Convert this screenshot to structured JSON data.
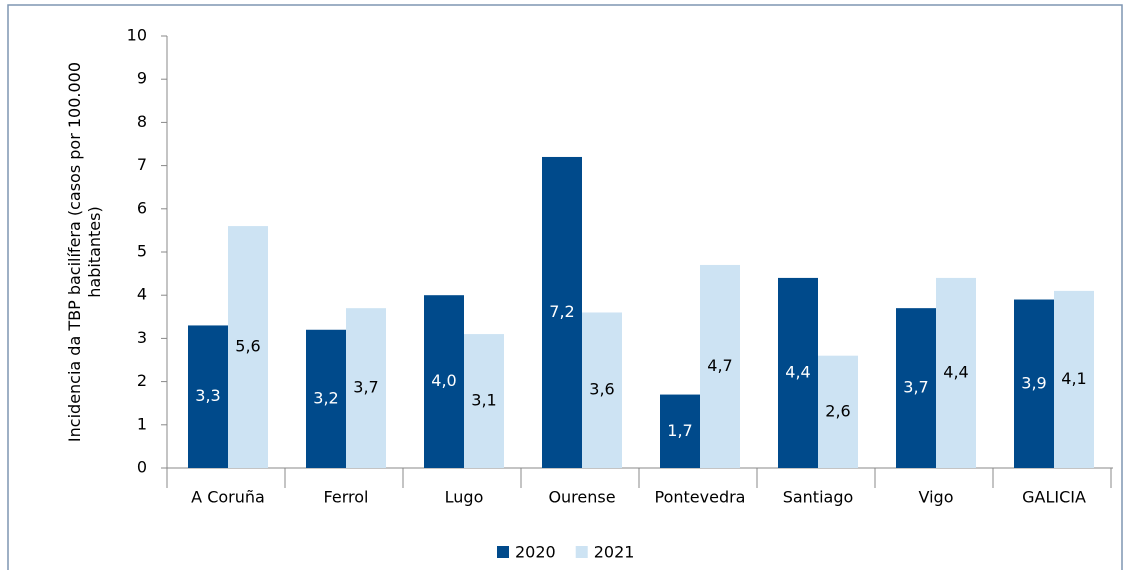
{
  "chart_data": {
    "type": "bar",
    "y_label": "Incidencia da TBP bacilífera (casos por 100.000 habitantes)",
    "categories": [
      "A Coruña",
      "Ferrol",
      "Lugo",
      "Ourense",
      "Pontevedra",
      "Santiago",
      "Vigo",
      "GALICIA"
    ],
    "series": [
      {
        "name": "2020",
        "color": "#004a8b",
        "label_color": "#ffffff",
        "values": [
          3.3,
          3.2,
          4.0,
          7.2,
          1.7,
          4.4,
          3.7,
          3.9
        ],
        "value_labels": [
          "3,3",
          "3,2",
          "4,0",
          "7,2",
          "1,7",
          "4,4",
          "3,7",
          "3,9"
        ]
      },
      {
        "name": "2021",
        "color": "#cde3f3",
        "label_color": "#000000",
        "values": [
          5.6,
          3.7,
          3.1,
          3.6,
          4.7,
          2.6,
          4.4,
          4.1
        ],
        "value_labels": [
          "5,6",
          "3,7",
          "3,1",
          "3,6",
          "4,7",
          "2,6",
          "4,4",
          "4,1"
        ]
      }
    ],
    "ylim": [
      0,
      10
    ],
    "yticks": [
      0,
      1,
      2,
      3,
      4,
      5,
      6,
      7,
      8,
      9,
      10
    ],
    "grid": false,
    "legend": "bottom"
  }
}
